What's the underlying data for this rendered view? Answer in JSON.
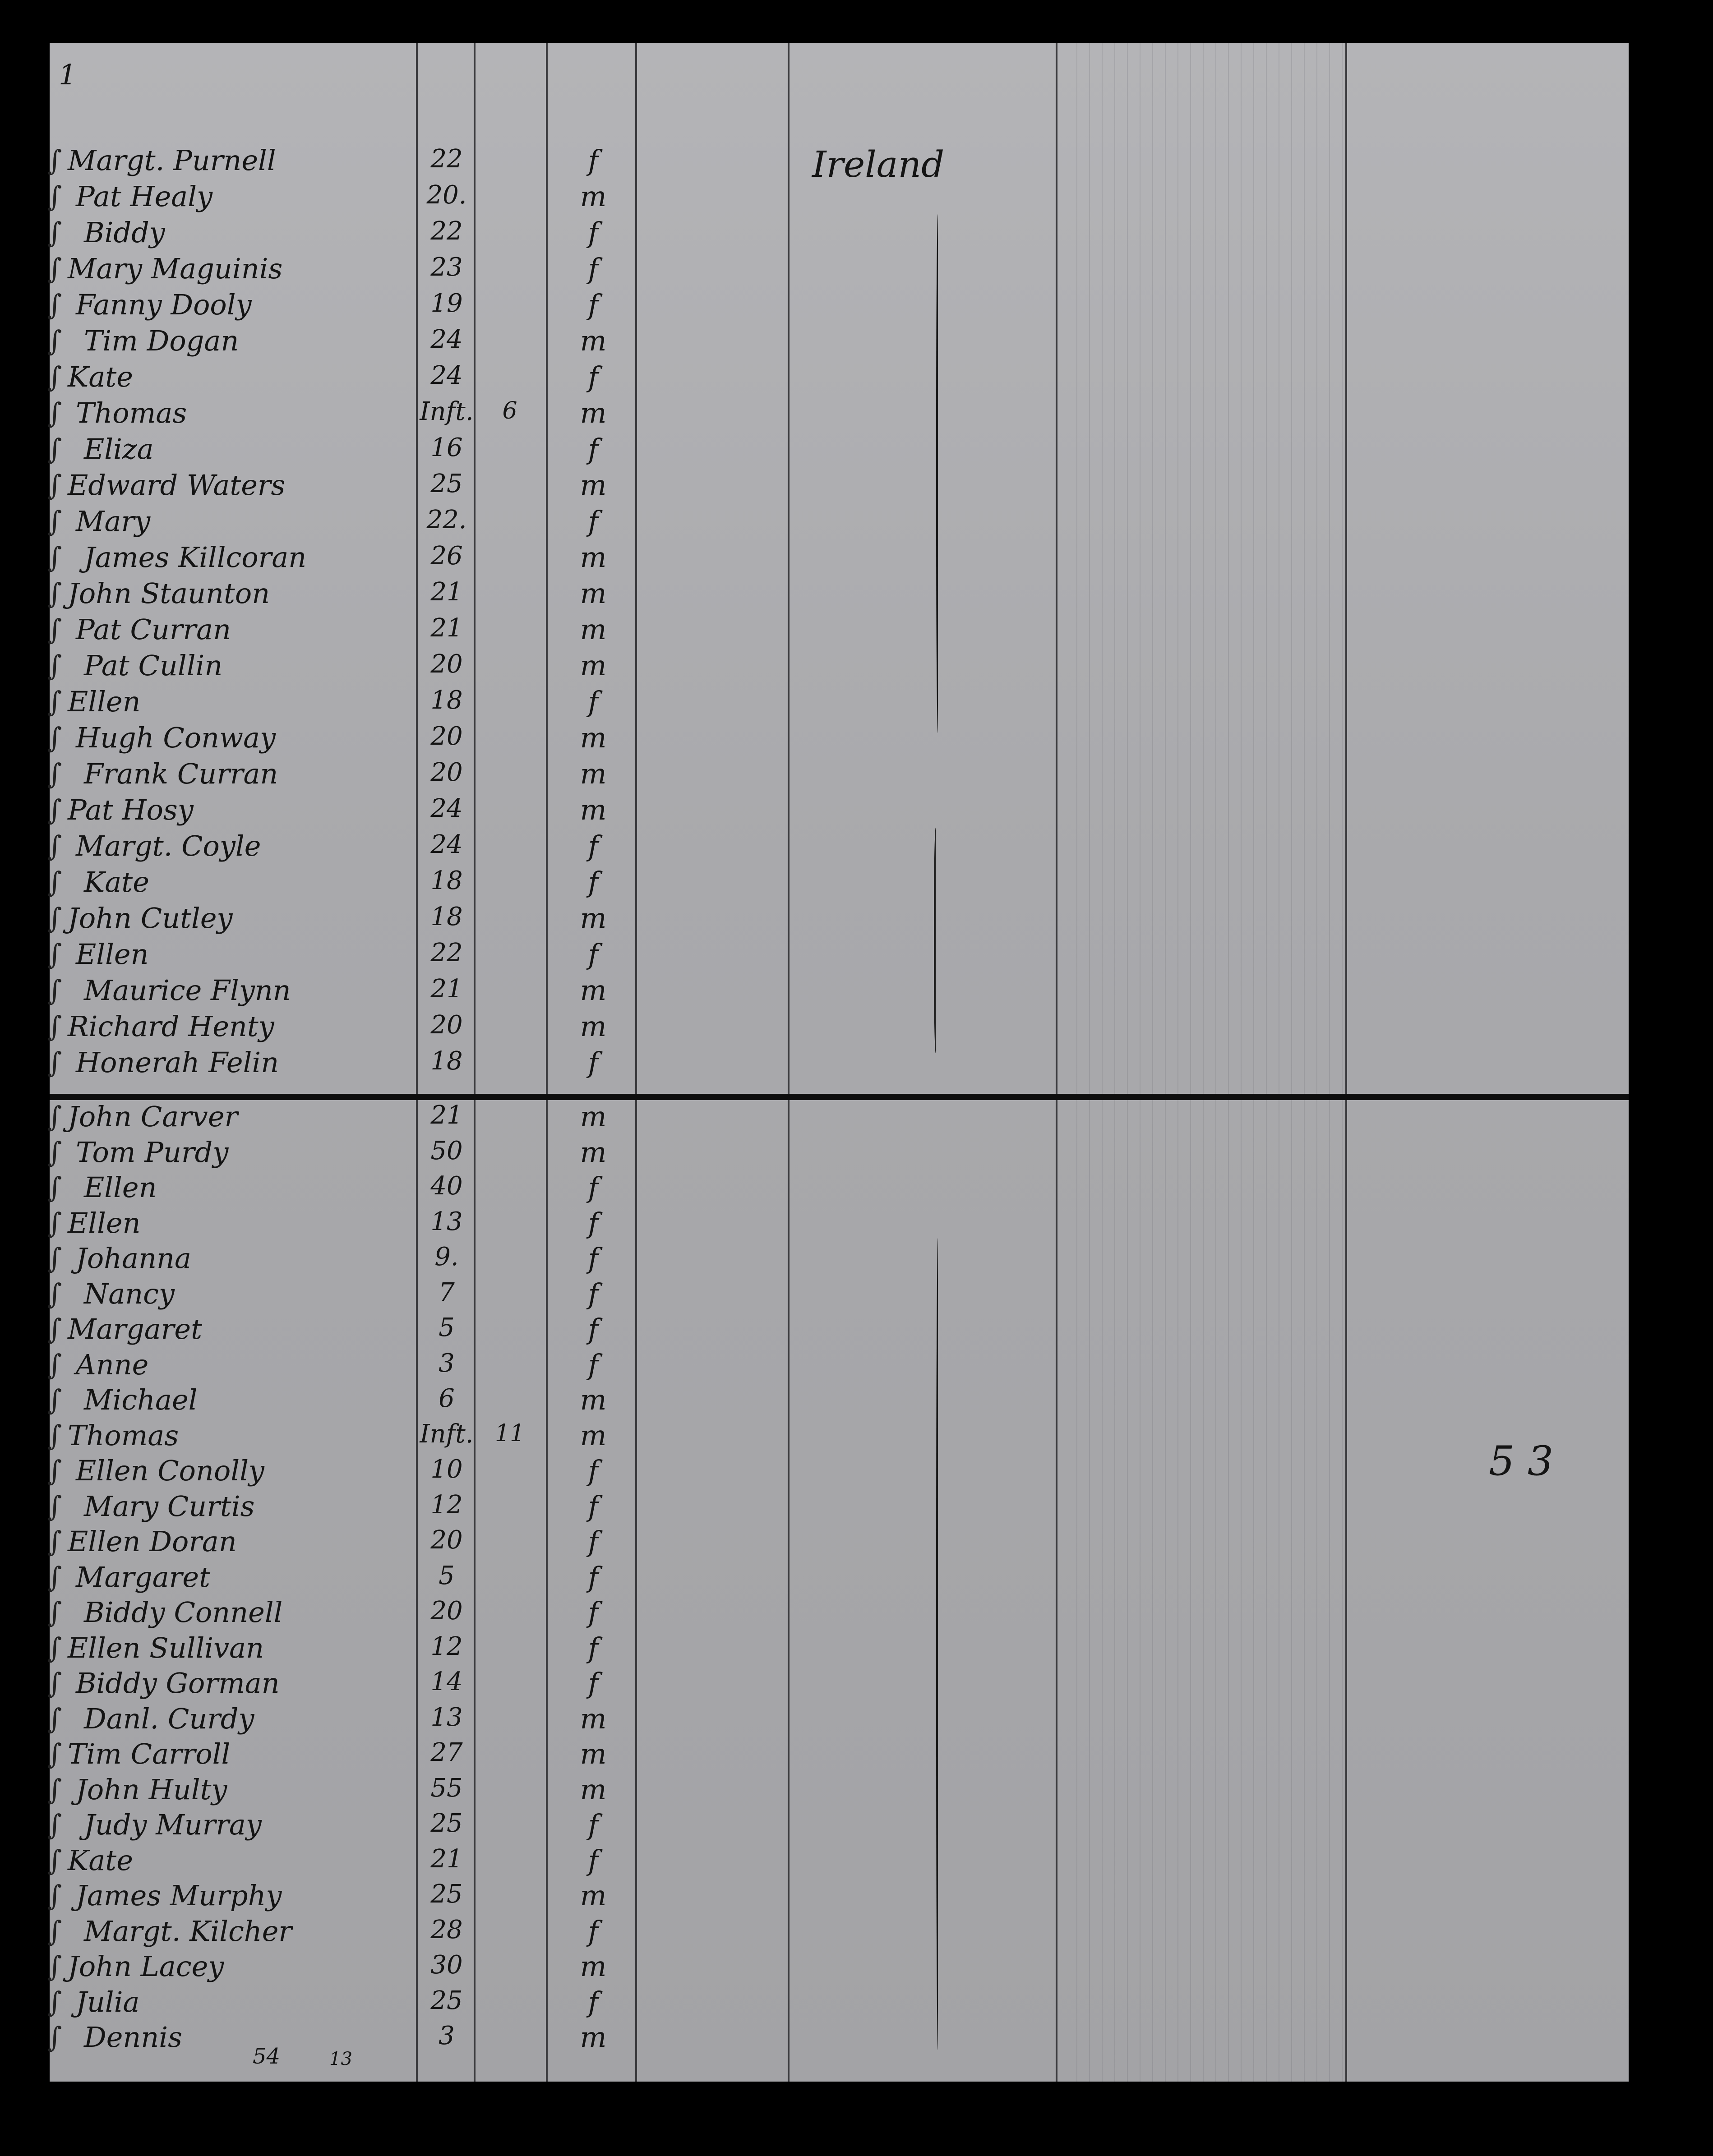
{
  "page_number": "1",
  "country_heading": "Ireland",
  "total_count": "5 3",
  "footer_notes": [
    "54",
    "13"
  ],
  "upper_section": [
    {
      "name": "Margt. Purnell",
      "age": "22",
      "sex": "f"
    },
    {
      "name": "Pat Healy",
      "age": "20.",
      "sex": "m"
    },
    {
      "name": "Biddy",
      "age": "22",
      "sex": "f"
    },
    {
      "name": "Mary Maguinis",
      "age": "23",
      "sex": "f"
    },
    {
      "name": "Fanny Dooly",
      "age": "19",
      "sex": "f"
    },
    {
      "name": "Tim Dogan",
      "age": "24",
      "sex": "m"
    },
    {
      "name": "Kate",
      "age": "24",
      "sex": "f"
    },
    {
      "name": "Thomas",
      "age": "Inft.",
      "mark": "6",
      "sex": "m"
    },
    {
      "name": "Eliza",
      "age": "16",
      "sex": "f"
    },
    {
      "name": "Edward Waters",
      "age": "25",
      "sex": "m"
    },
    {
      "name": "Mary",
      "age": "22.",
      "sex": "f"
    },
    {
      "name": "James Killcoran",
      "age": "26",
      "sex": "m"
    },
    {
      "name": "John Staunton",
      "age": "21",
      "sex": "m"
    },
    {
      "name": "Pat Curran",
      "age": "21",
      "sex": "m"
    },
    {
      "name": "Pat Cullin",
      "age": "20",
      "sex": "m"
    },
    {
      "name": "Ellen",
      "age": "18",
      "sex": "f"
    },
    {
      "name": "Hugh Conway",
      "age": "20",
      "sex": "m"
    },
    {
      "name": "Frank Curran",
      "age": "20",
      "sex": "m"
    },
    {
      "name": "Pat Hosy",
      "age": "24",
      "sex": "m"
    },
    {
      "name": "Margt. Coyle",
      "age": "24",
      "sex": "f"
    },
    {
      "name": "Kate",
      "age": "18",
      "sex": "f"
    },
    {
      "name": "John Cutley",
      "age": "18",
      "sex": "m"
    },
    {
      "name": "Ellen",
      "age": "22",
      "sex": "f"
    },
    {
      "name": "Maurice Flynn",
      "age": "21",
      "sex": "m"
    },
    {
      "name": "Richard Henty",
      "age": "20",
      "sex": "m"
    },
    {
      "name": "Honerah Felin",
      "age": "18",
      "sex": "f"
    }
  ],
  "lower_section": [
    {
      "name": "John Carver",
      "age": "21",
      "sex": "m"
    },
    {
      "name": "Tom Purdy",
      "age": "50",
      "sex": "m"
    },
    {
      "name": "Ellen",
      "age": "40",
      "sex": "f"
    },
    {
      "name": "Ellen",
      "age": "13",
      "sex": "f"
    },
    {
      "name": "Johanna",
      "age": "9.",
      "sex": "f"
    },
    {
      "name": "Nancy",
      "age": "7",
      "sex": "f"
    },
    {
      "name": "Margaret",
      "age": "5",
      "sex": "f"
    },
    {
      "name": "Anne",
      "age": "3",
      "sex": "f"
    },
    {
      "name": "Michael",
      "age": "6",
      "sex": "m"
    },
    {
      "name": "Thomas",
      "age": "Inft.",
      "mark": "11",
      "sex": "m"
    },
    {
      "name": "Ellen Conolly",
      "age": "10",
      "sex": "f"
    },
    {
      "name": "Mary Curtis",
      "age": "12",
      "sex": "f"
    },
    {
      "name": "Ellen Doran",
      "age": "20",
      "sex": "f"
    },
    {
      "name": "Margaret",
      "age": "5",
      "sex": "f"
    },
    {
      "name": "Biddy Connell",
      "age": "20",
      "sex": "f"
    },
    {
      "name": "Ellen Sullivan",
      "age": "12",
      "sex": "f"
    },
    {
      "name": "Biddy Gorman",
      "age": "14",
      "sex": "f"
    },
    {
      "name": "Danl. Curdy",
      "age": "13",
      "sex": "m"
    },
    {
      "name": "Tim Carroll",
      "age": "27",
      "sex": "m"
    },
    {
      "name": "John Hulty",
      "age": "55",
      "sex": "m"
    },
    {
      "name": "Judy Murray",
      "age": "25",
      "sex": "f"
    },
    {
      "name": "Kate",
      "age": "21",
      "sex": "f"
    },
    {
      "name": "James Murphy",
      "age": "25",
      "sex": "m"
    },
    {
      "name": "Margt. Kilcher",
      "age": "28",
      "sex": "f"
    },
    {
      "name": "John Lacey",
      "age": "30",
      "sex": "m"
    },
    {
      "name": "Julia",
      "age": "25",
      "sex": "f"
    },
    {
      "name": "Dennis",
      "age": "3",
      "sex": "m"
    }
  ]
}
